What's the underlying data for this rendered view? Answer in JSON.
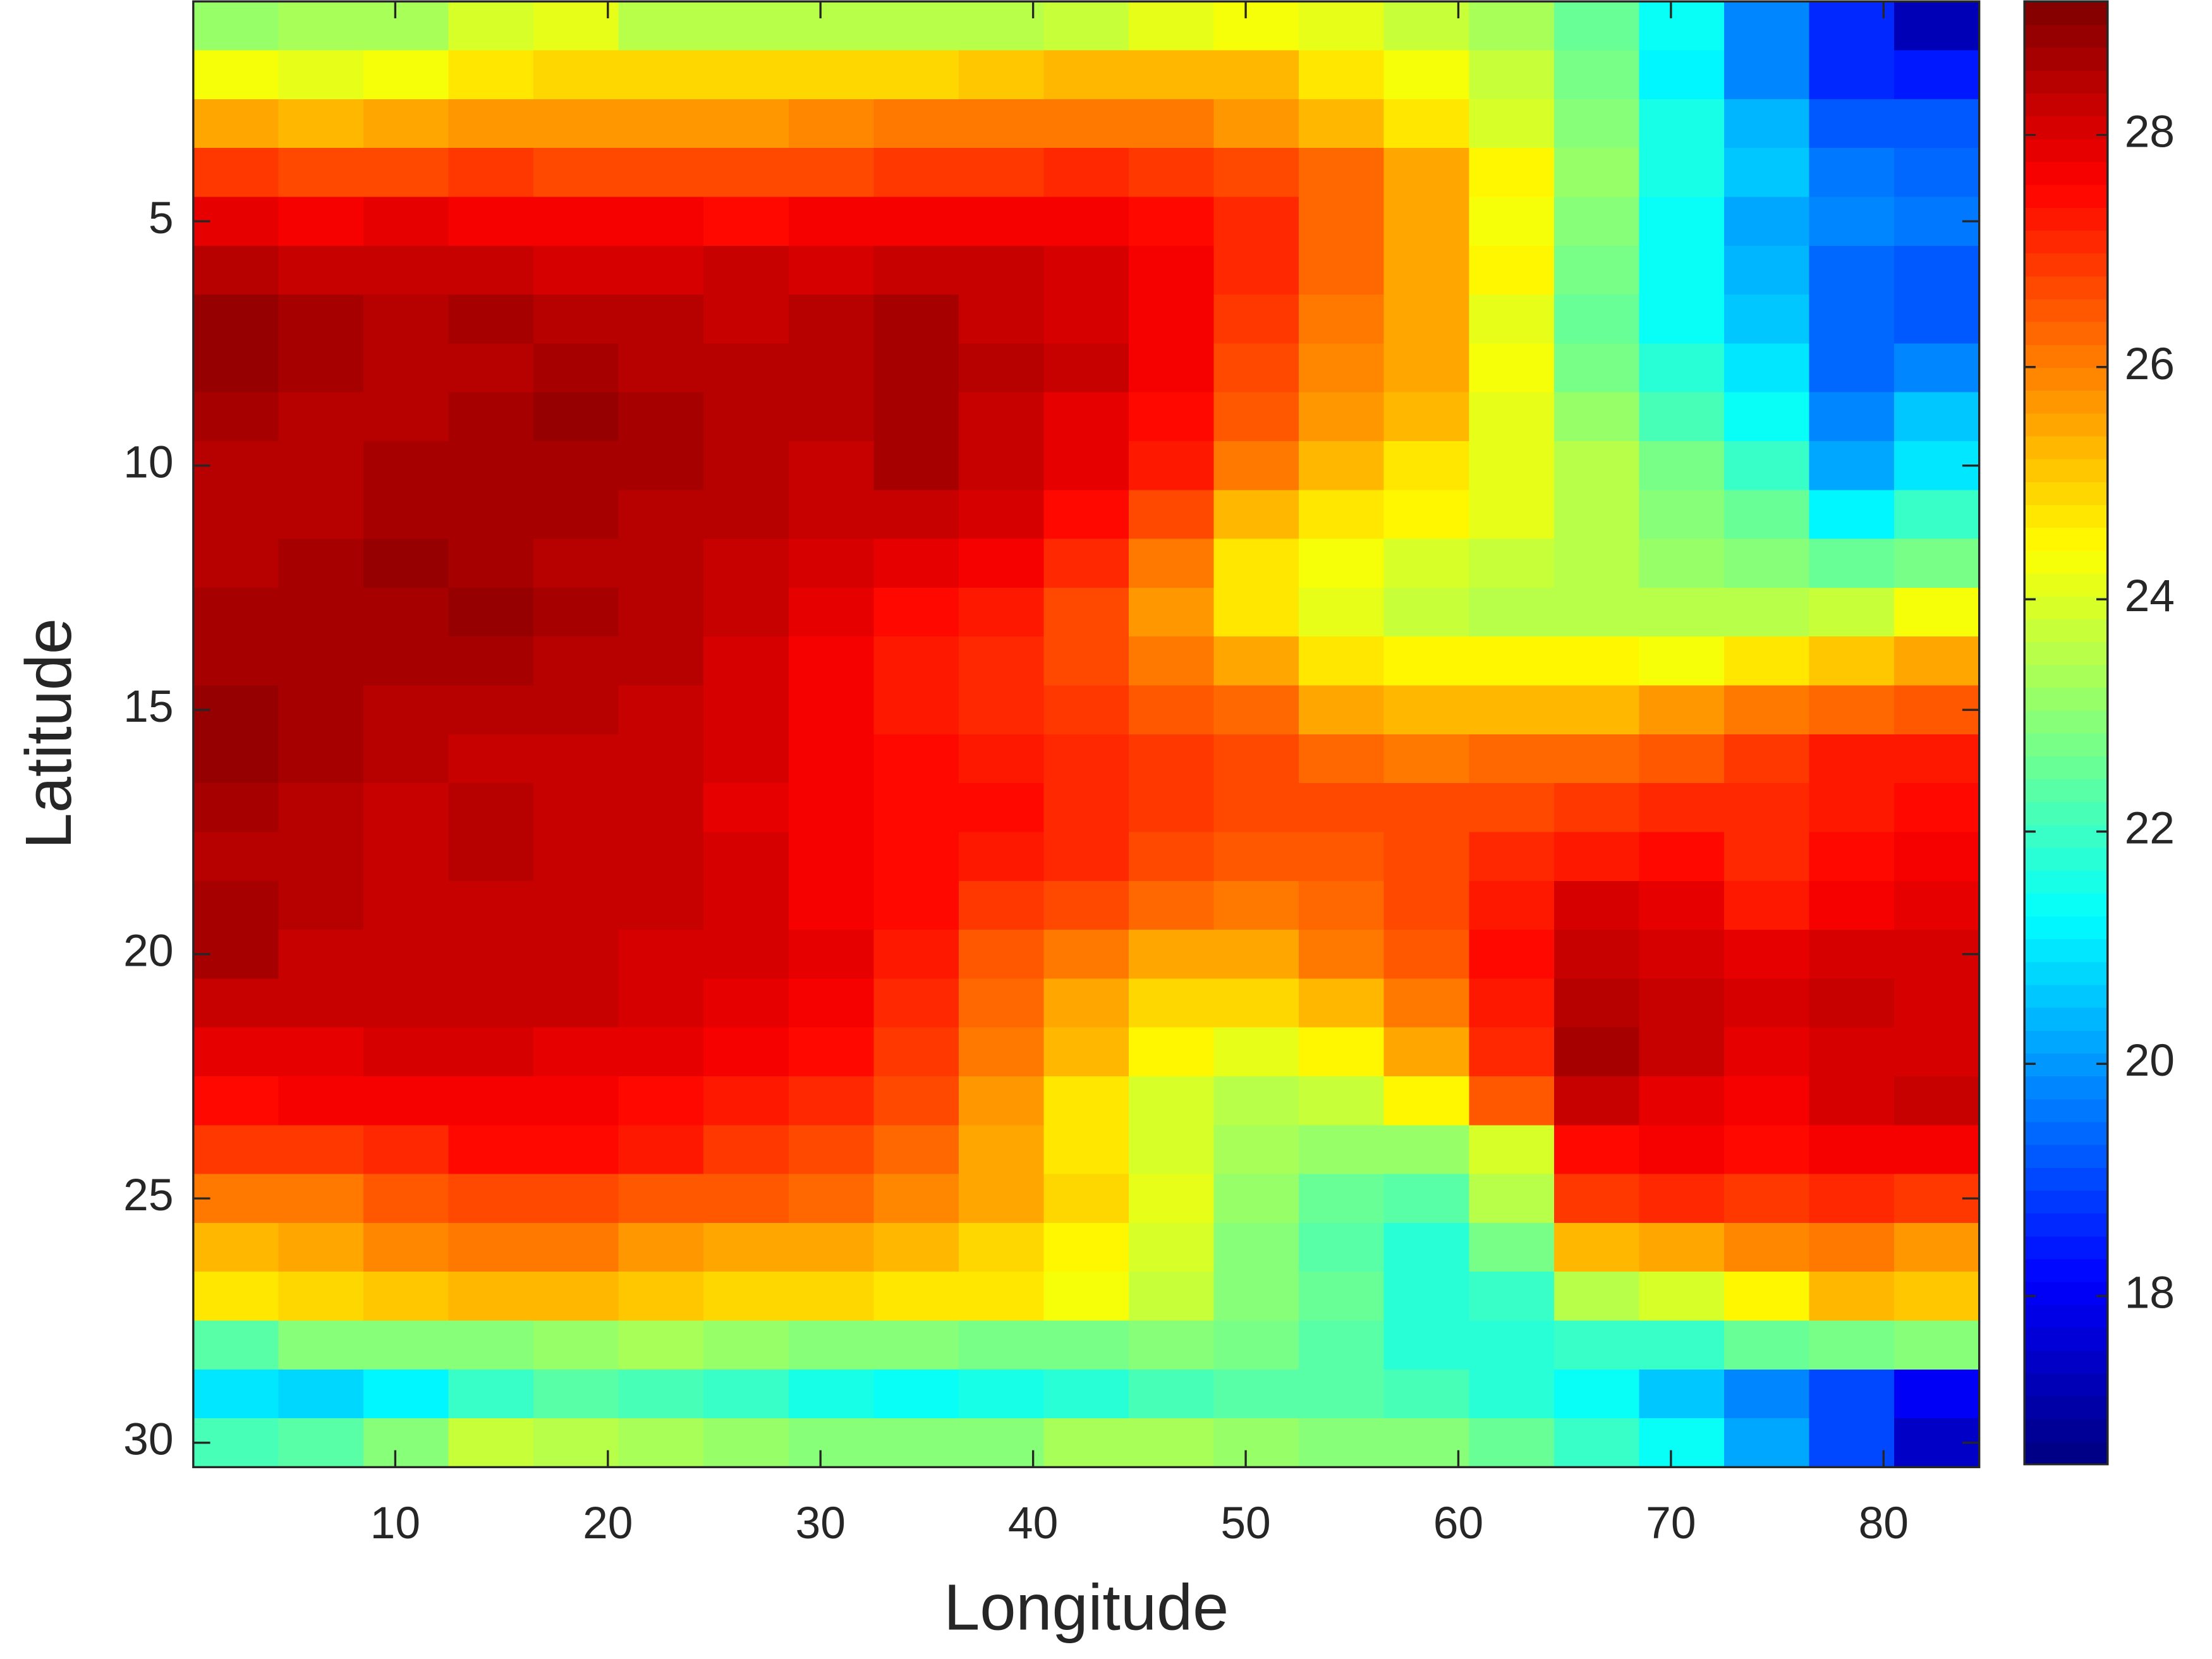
{
  "chart_data": {
    "type": "heatmap",
    "xlabel": "Longitude",
    "ylabel": "Latitude",
    "x": [
      2.5,
      6.5,
      10.5,
      14.5,
      18.5,
      22.5,
      26.5,
      30.5,
      34.5,
      38.5,
      42.5,
      46.5,
      50.5,
      54.5,
      58.5,
      62.5,
      66.5,
      70.5,
      74.5,
      78.5,
      82.5
    ],
    "y": [
      1,
      2,
      3,
      4,
      5,
      6,
      7,
      8,
      9,
      10,
      11,
      12,
      13,
      14,
      15,
      16,
      17,
      18,
      19,
      20,
      21,
      22,
      23,
      24,
      25,
      26,
      27,
      28,
      29,
      30
    ],
    "z": [
      [
        23.2,
        23.3,
        23.4,
        24,
        24.2,
        23.6,
        23.5,
        23.5,
        23.5,
        23.6,
        23.8,
        24.2,
        24.3,
        24.2,
        23.8,
        23.4,
        22.6,
        21.3,
        19.8,
        18.6,
        17.3
      ],
      [
        24.3,
        24.2,
        24.4,
        24.8,
        24.9,
        24.9,
        25,
        24.9,
        25,
        25.2,
        25.3,
        25.4,
        25.3,
        24.8,
        24.3,
        23.8,
        22.8,
        21.2,
        19.8,
        18.6,
        18.4
      ],
      [
        25.5,
        25.4,
        25.6,
        25.8,
        25.7,
        25.8,
        25.8,
        25.9,
        26,
        26,
        26.1,
        26.1,
        25.8,
        25.3,
        24.8,
        24,
        23,
        21.5,
        20.3,
        19.3,
        19.2
      ],
      [
        26.8,
        26.6,
        26.6,
        26.8,
        26.7,
        26.6,
        26.6,
        26.7,
        26.8,
        26.9,
        27,
        26.9,
        26.6,
        26.2,
        25.5,
        24.5,
        23.2,
        21.5,
        20.5,
        19.6,
        19.5
      ],
      [
        27.8,
        27.6,
        27.8,
        27.7,
        27.6,
        27.6,
        27.5,
        27.6,
        27.7,
        27.7,
        27.6,
        27.4,
        27,
        26.3,
        25.6,
        24.4,
        23,
        21.3,
        20.2,
        19.8,
        19.7
      ],
      [
        28.5,
        28.3,
        28.2,
        28.2,
        28.1,
        28.1,
        28.2,
        28.1,
        28.3,
        28.2,
        28,
        27.7,
        27,
        26.2,
        25.5,
        24.5,
        22.8,
        21.3,
        20.4,
        19.5,
        19.3
      ],
      [
        28.9,
        28.6,
        28.4,
        28.6,
        28.5,
        28.4,
        28.3,
        28.4,
        28.6,
        28.3,
        28.1,
        27.7,
        26.8,
        26,
        25.5,
        24.2,
        22.5,
        21.4,
        20.6,
        19.5,
        19.2
      ],
      [
        28.8,
        28.6,
        28.4,
        28.5,
        28.7,
        28.5,
        28.4,
        28.5,
        28.7,
        28.4,
        28.2,
        27.6,
        26.6,
        25.9,
        25.6,
        24.3,
        22.8,
        21.8,
        21,
        19.5,
        19.8
      ],
      [
        28.6,
        28.5,
        28.4,
        28.6,
        28.9,
        28.6,
        28.5,
        28.4,
        28.6,
        28.3,
        27.9,
        27.4,
        26.4,
        25.8,
        25.3,
        24.2,
        23.2,
        22.2,
        21.4,
        19.8,
        20.5
      ],
      [
        28.5,
        28.5,
        28.6,
        28.6,
        28.7,
        28.6,
        28.4,
        28.3,
        28.6,
        28.2,
        27.8,
        27.2,
        26,
        25.4,
        24.8,
        24.2,
        23.5,
        22.8,
        22,
        20.2,
        21
      ],
      [
        28.5,
        28.4,
        28.7,
        28.6,
        28.7,
        28.5,
        28.4,
        28.2,
        28.3,
        28,
        27.5,
        26.6,
        25.4,
        24.8,
        24.5,
        24.2,
        23.6,
        23,
        22.6,
        21.2,
        22
      ],
      [
        28.5,
        28.6,
        28.9,
        28.7,
        28.4,
        28.4,
        28.3,
        28,
        27.8,
        27.6,
        27,
        26.1,
        24.8,
        24.3,
        24,
        23.8,
        23.5,
        23.2,
        23,
        22.5,
        22.8
      ],
      [
        28.6,
        28.7,
        28.7,
        28.9,
        28.6,
        28.5,
        28.2,
        27.8,
        27.5,
        27.2,
        26.7,
        25.8,
        24.8,
        24.2,
        23.8,
        23.6,
        23.5,
        23.5,
        23.5,
        23.8,
        24.3
      ],
      [
        28.7,
        28.6,
        28.6,
        28.6,
        28.5,
        28.4,
        28.1,
        27.6,
        27.3,
        27,
        26.7,
        26,
        25.5,
        24.7,
        24.5,
        24.5,
        24.5,
        24.4,
        24.8,
        25.2,
        25.6
      ],
      [
        28.8,
        28.6,
        28.5,
        28.5,
        28.4,
        28.3,
        28,
        27.6,
        27.2,
        27,
        26.8,
        26.5,
        26.2,
        25.5,
        25.3,
        25.3,
        25.4,
        25.7,
        26,
        26.3,
        26.5
      ],
      [
        28.8,
        28.6,
        28.4,
        28.3,
        28.3,
        28.3,
        28,
        27.7,
        27.4,
        27.2,
        27,
        26.8,
        26.6,
        26.3,
        26.1,
        26.2,
        26.3,
        26.5,
        26.8,
        27.2,
        27.3
      ],
      [
        28.6,
        28.5,
        28.3,
        28.5,
        28.3,
        28.3,
        27.9,
        27.6,
        27.5,
        27.4,
        27.1,
        26.8,
        26.7,
        26.6,
        26.6,
        26.7,
        26.9,
        27,
        27,
        27.3,
        27.4
      ],
      [
        28.5,
        28.5,
        28.2,
        28.4,
        28.2,
        28.2,
        28,
        27.7,
        27.5,
        27.3,
        27,
        26.7,
        26.4,
        26.5,
        26.7,
        27,
        27.3,
        27.4,
        27.1,
        27.5,
        27.6
      ],
      [
        28.6,
        28.4,
        28.2,
        28.3,
        28.2,
        28.3,
        28.1,
        27.7,
        27.4,
        26.9,
        26.6,
        26.2,
        26.1,
        26.3,
        26.7,
        27.2,
        28,
        27.8,
        27.3,
        27.7,
        27.8
      ],
      [
        28.6,
        28.3,
        28.3,
        28.3,
        28.2,
        28.1,
        28,
        27.8,
        27.2,
        26.5,
        26,
        25.6,
        25.6,
        26,
        26.5,
        27.4,
        28.3,
        28.1,
        27.9,
        28,
        28.1
      ],
      [
        28.3,
        28.2,
        28.3,
        28.3,
        28.2,
        28,
        27.8,
        27.6,
        27.1,
        26.2,
        25.6,
        25,
        25,
        25.4,
        26.1,
        27.2,
        28.5,
        28.3,
        28.1,
        28.3,
        28
      ],
      [
        27.8,
        27.8,
        28.1,
        28.1,
        27.9,
        27.8,
        27.7,
        27.4,
        26.9,
        26,
        25.4,
        24.6,
        24.2,
        24.6,
        25.6,
        27,
        28.6,
        28.2,
        27.9,
        28.1,
        28
      ],
      [
        27.5,
        27.7,
        27.7,
        27.6,
        27.7,
        27.5,
        27.3,
        27.1,
        26.6,
        25.7,
        24.8,
        24,
        23.6,
        23.7,
        24.5,
        26.5,
        28.2,
        27.9,
        27.6,
        28.1,
        28.2
      ],
      [
        26.8,
        26.9,
        27,
        27.5,
        27.4,
        27.3,
        26.9,
        26.7,
        26.3,
        25.6,
        24.8,
        24,
        23.3,
        23.2,
        23.2,
        24,
        27.4,
        27.7,
        27.4,
        27.6,
        27.6
      ],
      [
        26.1,
        26.1,
        26.5,
        26.7,
        26.7,
        26.5,
        26.4,
        26.2,
        25.9,
        25.6,
        25,
        24.2,
        23.1,
        22.6,
        22.3,
        23.5,
        26.8,
        27,
        26.8,
        27,
        26.9
      ],
      [
        25.3,
        25.5,
        25.9,
        26,
        26,
        25.8,
        25.6,
        25.6,
        25.4,
        25,
        24.5,
        24,
        23,
        22.4,
        21.8,
        22.8,
        25.4,
        25.6,
        25.9,
        26.1,
        25.8
      ],
      [
        24.8,
        25,
        25.2,
        25.3,
        25.3,
        25.1,
        25,
        24.9,
        24.8,
        24.7,
        24.4,
        23.8,
        23,
        22.5,
        21.8,
        22,
        23.5,
        24,
        24.5,
        25.3,
        25.1
      ],
      [
        22.3,
        22.9,
        23,
        23,
        23.2,
        23.3,
        23.1,
        23,
        22.9,
        22.8,
        22.8,
        23,
        22.8,
        22.4,
        21.8,
        21.7,
        21.9,
        22,
        22.5,
        22.8,
        23
      ],
      [
        20.9,
        20.8,
        21.2,
        22,
        22.3,
        22.2,
        21.9,
        21.6,
        21.4,
        21.5,
        21.8,
        22.2,
        22.4,
        22.4,
        22.2,
        21.8,
        21.3,
        20.6,
        19.8,
        19,
        18
      ],
      [
        22.2,
        22.4,
        23,
        23.7,
        23.6,
        23.4,
        23.1,
        23,
        22.9,
        23,
        23.3,
        23.3,
        23.2,
        23,
        22.9,
        22.5,
        22,
        21.3,
        20.2,
        19,
        17.5
      ]
    ],
    "xlim": [
      0.5,
      84.5
    ],
    "ylim": [
      0.5,
      30.5
    ],
    "y_reversed": true,
    "xticks": [
      10,
      20,
      30,
      40,
      50,
      60,
      70,
      80
    ],
    "yticks": [
      5,
      10,
      15,
      20,
      25,
      30
    ],
    "colormap": "jet",
    "colormap_levels": 64,
    "clim": [
      16.55,
      29.15
    ],
    "colorbar_ticks": [
      18,
      20,
      22,
      24,
      26,
      28
    ]
  }
}
